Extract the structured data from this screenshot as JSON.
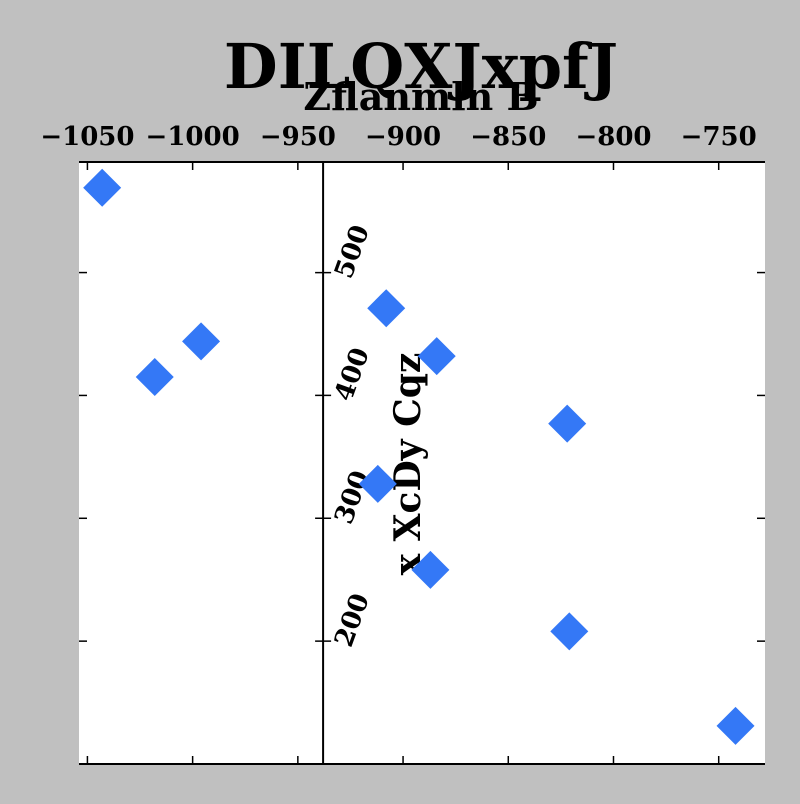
{
  "chart_data": {
    "type": "scatter",
    "title": "DILQXJxpfJ",
    "xlabel": "Zflanmln  B",
    "ylabel": "x XcDy Cqz",
    "xlim": [
      -1054,
      -728
    ],
    "ylim": [
      100,
      590
    ],
    "x_axis_position": "top",
    "y_axis_position": "inside at x = -938",
    "grid": false,
    "xticks": [
      -1050,
      -1000,
      -950,
      -900,
      -850,
      -800,
      -750
    ],
    "xtick_labels": [
      "−1050",
      "−1000",
      "−950",
      "−900",
      "−850",
      "−800",
      "−750"
    ],
    "yticks": [
      200,
      300,
      400,
      500
    ],
    "ytick_labels": [
      "200",
      "300",
      "400",
      "500"
    ],
    "marker": "diamond",
    "color": "#3478f6",
    "points": [
      {
        "x": -1043,
        "y": 569
      },
      {
        "x": -996,
        "y": 444
      },
      {
        "x": -1018,
        "y": 415
      },
      {
        "x": -908,
        "y": 471
      },
      {
        "x": -884,
        "y": 432
      },
      {
        "x": -822,
        "y": 377
      },
      {
        "x": -912,
        "y": 328
      },
      {
        "x": -887,
        "y": 258
      },
      {
        "x": -821,
        "y": 208
      },
      {
        "x": -742,
        "y": 131
      }
    ]
  }
}
